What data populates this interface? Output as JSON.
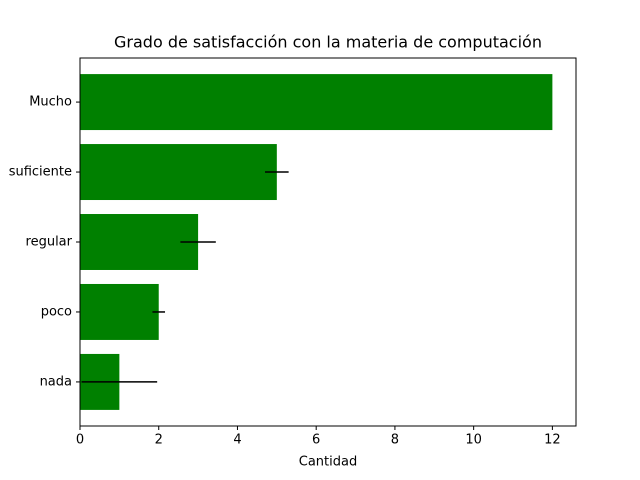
{
  "chart_data": {
    "type": "barh",
    "title": "Grado de satisfacción con la materia de computación",
    "xlabel": "Cantidad",
    "categories": [
      "nada",
      "poco",
      "regular",
      "suficiente",
      "Mucho"
    ],
    "values": [
      1,
      2,
      3,
      5,
      12
    ],
    "errors": [
      0.96,
      0.16,
      0.45,
      0.3,
      0
    ],
    "color": "#008000",
    "error_color": "#000000",
    "xlim": [
      0,
      12.6
    ],
    "xticks": [
      0,
      2,
      4,
      6,
      8,
      10,
      12
    ]
  }
}
